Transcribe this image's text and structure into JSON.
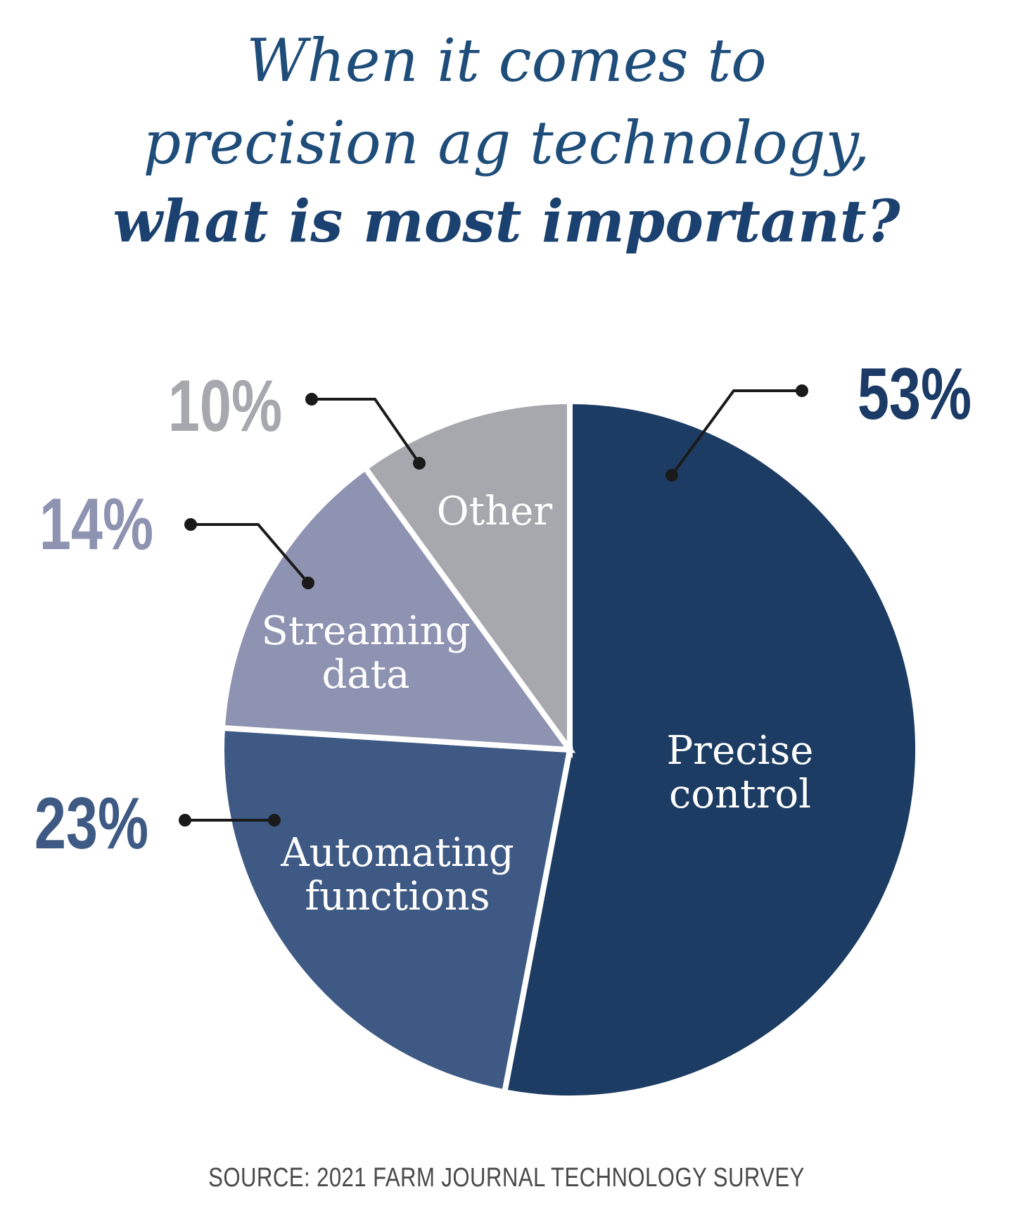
{
  "title": {
    "line1": "When it comes to",
    "line2": "precision ag technology,",
    "line3": "what is most important?"
  },
  "chart_data": {
    "type": "pie",
    "categories": [
      "Precise control",
      "Automating functions",
      "Streaming data",
      "Other"
    ],
    "slice_labels": [
      [
        "Precise",
        "control"
      ],
      [
        "Automating",
        "functions"
      ],
      [
        "Streaming",
        "data"
      ],
      [
        "Other"
      ]
    ],
    "values": [
      53,
      23,
      14,
      10
    ],
    "value_labels": [
      "53%",
      "23%",
      "14%",
      "10%"
    ],
    "colors": [
      "#1d3c63",
      "#3e5a84",
      "#8d93b1",
      "#a6a8ad"
    ],
    "value_label_colors": [
      "#1b3a66",
      "#3e5a84",
      "#8d93b1",
      "#a6a8ad"
    ],
    "start": "12 o'clock",
    "direction": "clockwise"
  },
  "source": "SOURCE: 2021 FARM JOURNAL TECHNOLOGY SURVEY"
}
